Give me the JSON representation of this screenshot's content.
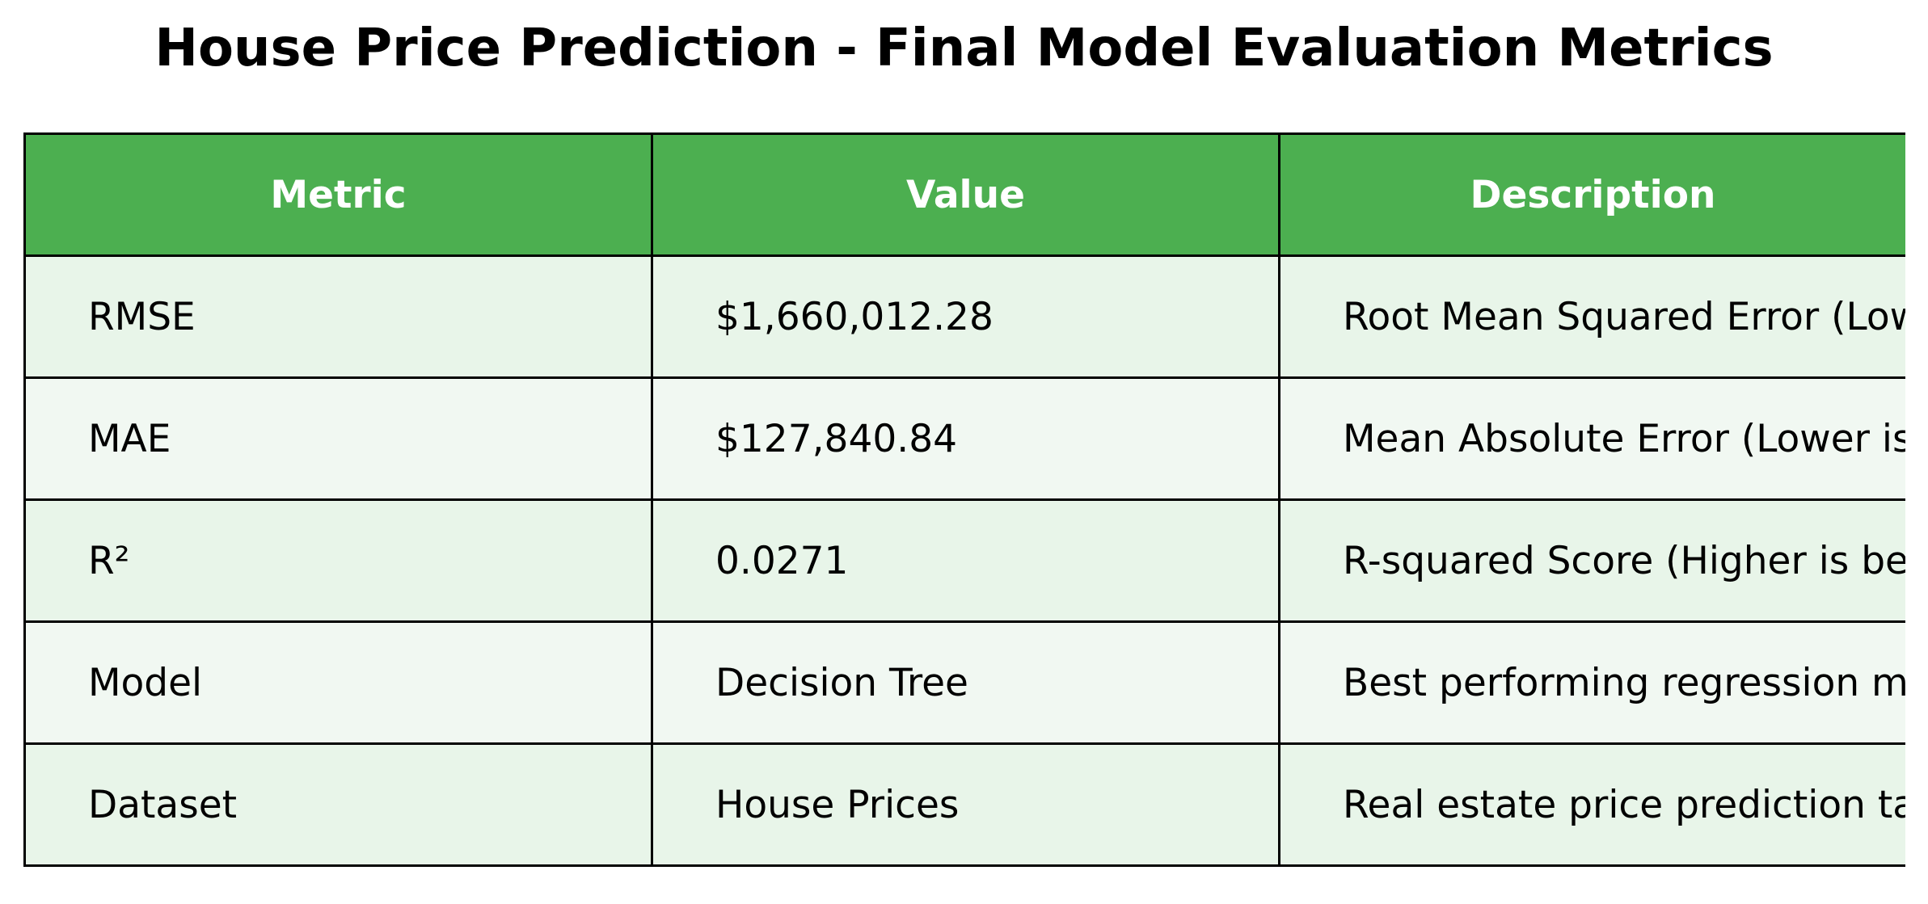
{
  "chart_data": {
    "type": "table",
    "title": "House Price Prediction - Final Model Evaluation Metrics",
    "columns": [
      "Metric",
      "Value",
      "Description"
    ],
    "rows": [
      [
        "RMSE",
        "$1,660,012.28",
        "Root Mean Squared Error (Lower is better)"
      ],
      [
        "MAE",
        "$127,840.84",
        "Mean Absolute Error (Lower is better)"
      ],
      [
        "R²",
        "0.0271",
        "R-squared Score (Higher is better)"
      ],
      [
        "Model",
        "Decision Tree",
        "Best performing regression model"
      ],
      [
        "Dataset",
        "House Prices",
        "Real estate price prediction task"
      ]
    ]
  },
  "colors": {
    "header_background": "#4caf50",
    "header_text": "#ffffff",
    "row_odd_background": "#e8f5e9",
    "row_even_background": "#f1f8f2",
    "border": "#000000"
  }
}
